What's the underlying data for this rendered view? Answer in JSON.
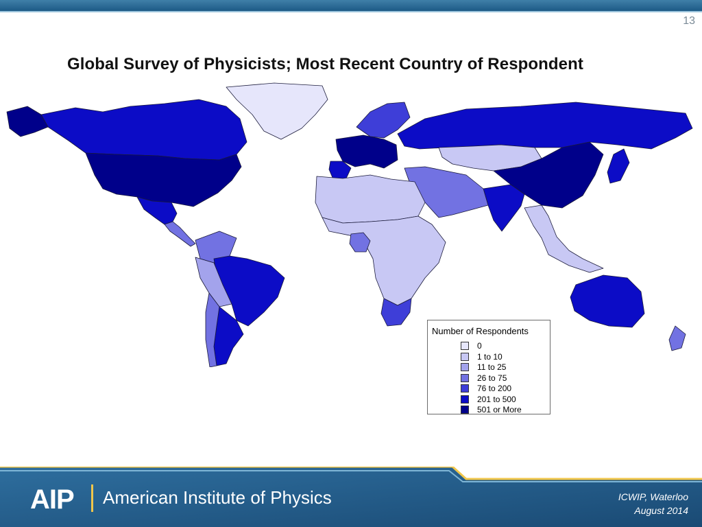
{
  "slide": {
    "number": "13"
  },
  "map": {
    "title": "Global Survey of Physicists; Most Recent Country of Respondent",
    "legend": {
      "title": "Number of Respondents",
      "items": [
        {
          "label": "0",
          "color": "#e6e6fb"
        },
        {
          "label": "1 to 10",
          "color": "#c8c8f4"
        },
        {
          "label": "11 to 25",
          "color": "#a3a3ec"
        },
        {
          "label": "26 to 75",
          "color": "#7272e2"
        },
        {
          "label": "76 to 200",
          "color": "#3e3ed8"
        },
        {
          "label": "201 to 500",
          "color": "#0c0cc6"
        },
        {
          "label": "501 or More",
          "color": "#00008a"
        }
      ]
    },
    "regions": [
      {
        "name": "Canada",
        "class": "201 to 500"
      },
      {
        "name": "United States",
        "class": "501 or More"
      },
      {
        "name": "Alaska",
        "class": "501 or More"
      },
      {
        "name": "Greenland",
        "class": "0"
      },
      {
        "name": "Mexico",
        "class": "201 to 500"
      },
      {
        "name": "Central America",
        "class": "26 to 75"
      },
      {
        "name": "Colombia / Venezuela",
        "class": "26 to 75"
      },
      {
        "name": "Brazil",
        "class": "201 to 500"
      },
      {
        "name": "Peru / Bolivia",
        "class": "11 to 25"
      },
      {
        "name": "Argentina",
        "class": "201 to 500"
      },
      {
        "name": "Chile",
        "class": "26 to 75"
      },
      {
        "name": "Western Europe",
        "class": "501 or More"
      },
      {
        "name": "Spain",
        "class": "201 to 500"
      },
      {
        "name": "Scandinavia",
        "class": "76 to 200"
      },
      {
        "name": "Russia",
        "class": "201 to 500"
      },
      {
        "name": "Kazakhstan / Central Asia",
        "class": "1 to 10"
      },
      {
        "name": "China",
        "class": "501 or More"
      },
      {
        "name": "Japan",
        "class": "201 to 500"
      },
      {
        "name": "India",
        "class": "201 to 500"
      },
      {
        "name": "Middle East",
        "class": "26 to 75"
      },
      {
        "name": "North Africa",
        "class": "1 to 10"
      },
      {
        "name": "Sub-Saharan Africa",
        "class": "1 to 10"
      },
      {
        "name": "Nigeria",
        "class": "26 to 75"
      },
      {
        "name": "South Africa",
        "class": "76 to 200"
      },
      {
        "name": "Southeast Asia",
        "class": "1 to 10"
      },
      {
        "name": "Australia",
        "class": "201 to 500"
      },
      {
        "name": "New Zealand",
        "class": "26 to 75"
      }
    ]
  },
  "footer": {
    "logo": "AIP",
    "org": "American Institute of Physics",
    "event": "ICWIP, Waterloo",
    "date": "August 2014"
  },
  "colors": {
    "ocean": "#ffffff",
    "border": "#1a1a3a",
    "footer_dark": "#1f4f7a",
    "footer_light": "#3f86b6",
    "accent_gold": "#f0c64b"
  }
}
